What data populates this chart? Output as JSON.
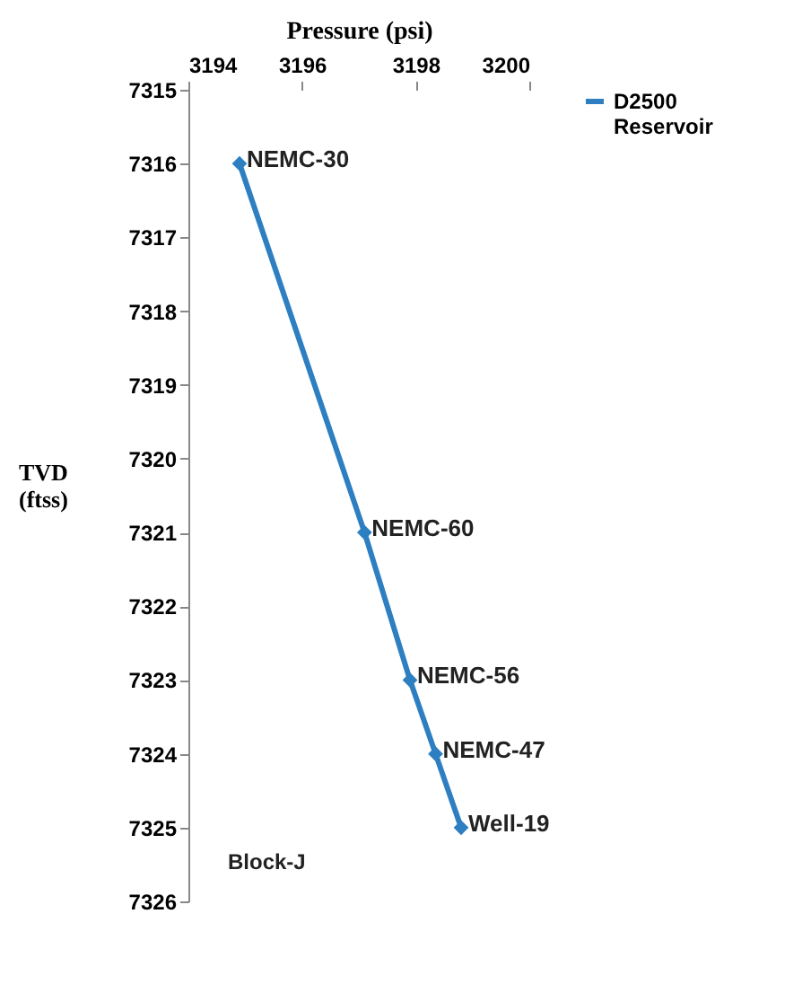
{
  "chart_data": {
    "type": "line",
    "xlabel": "Pressure (psi)",
    "ylabel": "TVD (ftss)",
    "x": [
      3194.9,
      3197.1,
      3197.9,
      3198.35,
      3198.8
    ],
    "series": [
      {
        "name": "D2500 Reservoir",
        "color": "#2e7fc1",
        "values": [
          7316,
          7321,
          7323,
          7324,
          7325
        ]
      }
    ],
    "xlim": [
      3194,
      3200
    ],
    "xticks": [
      3194,
      3196,
      3198,
      3200
    ],
    "ylim": [
      7326,
      7315
    ],
    "yticks": [
      7315,
      7316,
      7317,
      7318,
      7319,
      7320,
      7321,
      7322,
      7323,
      7324,
      7325,
      7326
    ],
    "grid": false,
    "legend": "right",
    "marker": "diamond",
    "line_style": "solid",
    "annotations": [
      {
        "text": "NEMC-30",
        "x": 3194.9,
        "y": 7316
      },
      {
        "text": "NEMC-60",
        "x": 3197.1,
        "y": 7321
      },
      {
        "text": "NEMC-56",
        "x": 3197.9,
        "y": 7323
      },
      {
        "text": "NEMC-47",
        "x": 3198.35,
        "y": 7324
      },
      {
        "text": "Well-19",
        "x": 3198.8,
        "y": 7325
      },
      "Block-J"
    ]
  }
}
